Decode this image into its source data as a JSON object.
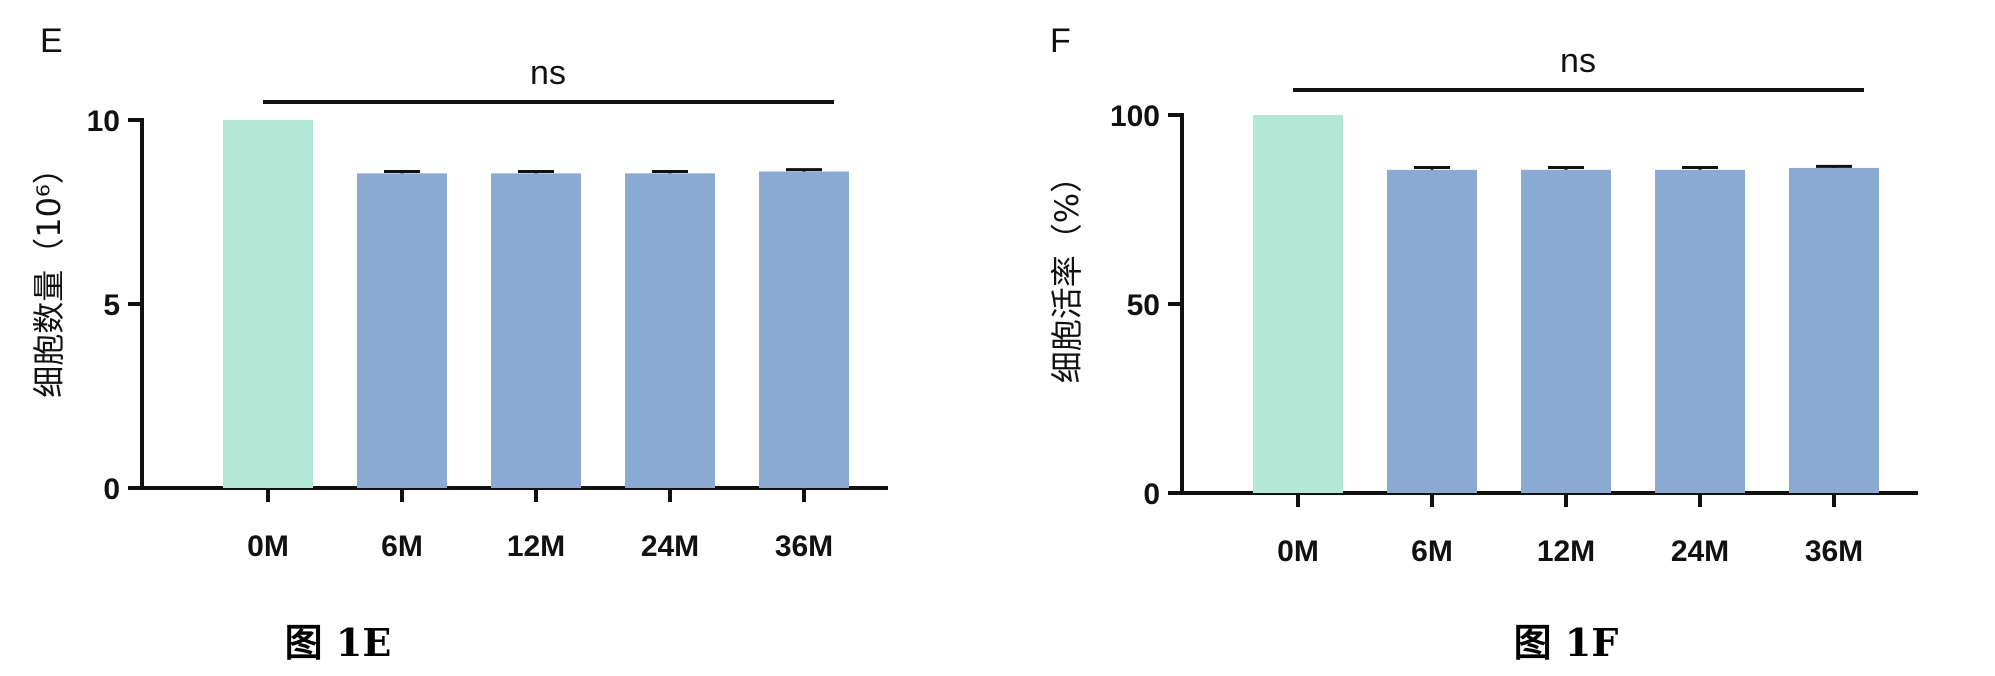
{
  "chart_data": [
    {
      "type": "bar",
      "panel": "E",
      "categories": [
        "0M",
        "6M",
        "12M",
        "24M",
        "36M"
      ],
      "values": [
        10.0,
        8.55,
        8.55,
        8.55,
        8.6
      ],
      "errors": [
        0.0,
        0.05,
        0.05,
        0.05,
        0.05
      ],
      "ylabel": "细胞数量（10⁶）",
      "ylim": [
        0,
        10
      ],
      "yticks": [
        "0",
        "5",
        "10"
      ],
      "significance": "ns",
      "caption": "图 1E",
      "bar_colors": [
        "#b3e8d6",
        "#8aaad3",
        "#8aaad3",
        "#8aaad3",
        "#8aaad3"
      ]
    },
    {
      "type": "bar",
      "panel": "F",
      "categories": [
        "0M",
        "6M",
        "12M",
        "24M",
        "36M"
      ],
      "values": [
        100,
        85.5,
        85.5,
        85.5,
        86
      ],
      "errors": [
        0.0,
        0.6,
        0.6,
        0.6,
        0.4
      ],
      "ylabel": "细胞活率（%）",
      "ylim": [
        0,
        100
      ],
      "yticks": [
        "0",
        "50",
        "100"
      ],
      "significance": "ns",
      "caption": "图 1F",
      "bar_colors": [
        "#b3e8d6",
        "#8aaad3",
        "#8aaad3",
        "#8aaad3",
        "#8aaad3"
      ]
    }
  ]
}
